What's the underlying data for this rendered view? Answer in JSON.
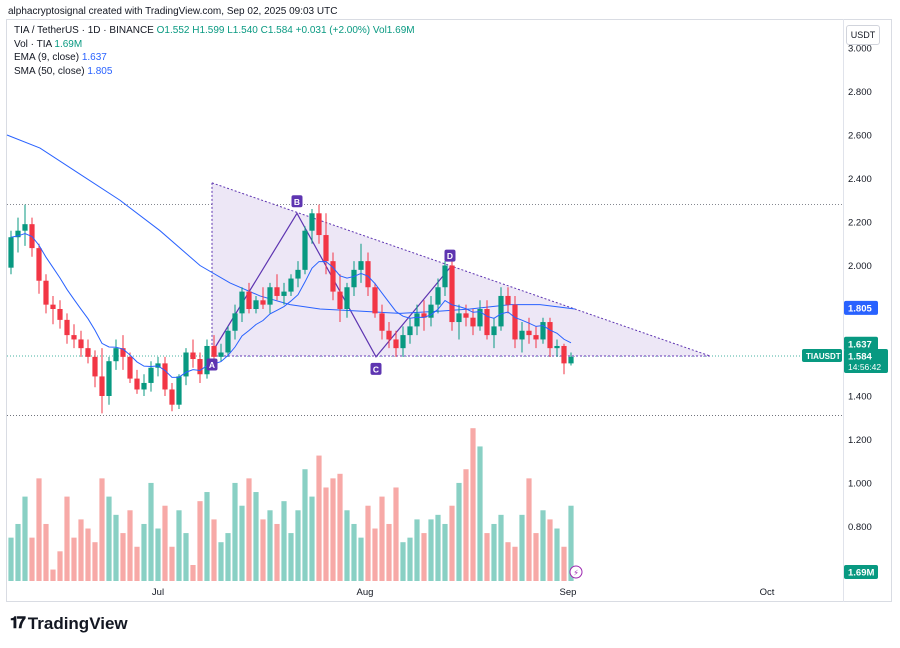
{
  "header": {
    "text": "alphacryptosignal created with TradingView.com, Sep 02, 2025 09:03 UTC"
  },
  "legend": {
    "symbol": "TIA / TetherUS · 1D · BINANCE",
    "ohlc": "O1.552  H1.599  L1.540  C1.584  +0.031 (+2.00%)  Vol1.69M",
    "vol_label": "Vol · TIA",
    "vol_value": "1.69M",
    "ema_label": "EMA (9, close)",
    "ema_value": "1.637",
    "sma_label": "SMA (50, close)",
    "sma_value": "1.805"
  },
  "currency_button": "USDT",
  "brand": {
    "name": "TradingView"
  },
  "colors": {
    "up": "#089981",
    "down": "#f23645",
    "ema": "#2962ff",
    "sma": "#2962ff",
    "pattern_fill": "#ede7f6",
    "pattern_marker": "#5e35b1"
  },
  "chart_data": {
    "type": "candlestick",
    "y_ticks": [
      "3.000",
      "2.800",
      "2.600",
      "2.400",
      "2.200",
      "2.000",
      "1.800",
      "1.600",
      "1.400",
      "1.200",
      "1.000",
      "0.800"
    ],
    "x_ticks": [
      "Jul",
      "Aug",
      "Sep",
      "Oct"
    ],
    "price_labels": [
      {
        "text": "1.805",
        "kind": "sma"
      },
      {
        "text": "1.637",
        "kind": "ema"
      },
      {
        "text": "1.584",
        "kind": "last",
        "ticker": "TIAUSDT",
        "countdown": "14:56:42"
      },
      {
        "text": "1.69M",
        "kind": "volume"
      }
    ],
    "pattern_points": [
      "A",
      "B",
      "C",
      "D"
    ],
    "candles": [
      [
        1.99,
        2.16,
        1.96,
        2.13
      ],
      [
        2.13,
        2.22,
        2.06,
        2.16
      ],
      [
        2.16,
        2.28,
        2.09,
        2.19
      ],
      [
        2.19,
        2.22,
        2.04,
        2.08
      ],
      [
        2.08,
        2.1,
        1.87,
        1.93
      ],
      [
        1.93,
        1.96,
        1.78,
        1.82
      ],
      [
        1.82,
        1.86,
        1.73,
        1.8
      ],
      [
        1.8,
        1.84,
        1.71,
        1.75
      ],
      [
        1.75,
        1.78,
        1.64,
        1.68
      ],
      [
        1.68,
        1.73,
        1.62,
        1.66
      ],
      [
        1.66,
        1.7,
        1.58,
        1.62
      ],
      [
        1.62,
        1.66,
        1.55,
        1.58
      ],
      [
        1.58,
        1.61,
        1.44,
        1.49
      ],
      [
        1.49,
        1.62,
        1.32,
        1.4
      ],
      [
        1.4,
        1.58,
        1.36,
        1.56
      ],
      [
        1.56,
        1.66,
        1.52,
        1.62
      ],
      [
        1.62,
        1.68,
        1.52,
        1.58
      ],
      [
        1.58,
        1.6,
        1.46,
        1.48
      ],
      [
        1.48,
        1.52,
        1.41,
        1.43
      ],
      [
        1.43,
        1.5,
        1.4,
        1.46
      ],
      [
        1.46,
        1.56,
        1.42,
        1.53
      ],
      [
        1.53,
        1.58,
        1.49,
        1.55
      ],
      [
        1.55,
        1.58,
        1.4,
        1.43
      ],
      [
        1.43,
        1.46,
        1.33,
        1.36
      ],
      [
        1.36,
        1.5,
        1.34,
        1.49
      ],
      [
        1.49,
        1.62,
        1.45,
        1.6
      ],
      [
        1.6,
        1.66,
        1.53,
        1.57
      ],
      [
        1.57,
        1.6,
        1.46,
        1.5
      ],
      [
        1.5,
        1.66,
        1.48,
        1.63
      ],
      [
        1.63,
        1.68,
        1.55,
        1.58
      ],
      [
        1.58,
        1.64,
        1.56,
        1.6
      ],
      [
        1.6,
        1.72,
        1.58,
        1.7
      ],
      [
        1.7,
        1.82,
        1.66,
        1.78
      ],
      [
        1.78,
        1.9,
        1.74,
        1.88
      ],
      [
        1.88,
        1.92,
        1.78,
        1.8
      ],
      [
        1.8,
        1.86,
        1.78,
        1.84
      ],
      [
        1.84,
        1.9,
        1.8,
        1.82
      ],
      [
        1.82,
        1.92,
        1.78,
        1.9
      ],
      [
        1.9,
        1.96,
        1.84,
        1.86
      ],
      [
        1.86,
        1.92,
        1.82,
        1.88
      ],
      [
        1.88,
        1.96,
        1.86,
        1.94
      ],
      [
        1.94,
        2.02,
        1.9,
        1.98
      ],
      [
        1.98,
        2.18,
        1.96,
        2.16
      ],
      [
        2.16,
        2.26,
        2.1,
        2.24
      ],
      [
        2.24,
        2.28,
        2.1,
        2.14
      ],
      [
        2.14,
        2.24,
        1.96,
        2.02
      ],
      [
        2.02,
        2.06,
        1.84,
        1.88
      ],
      [
        1.88,
        1.96,
        1.74,
        1.8
      ],
      [
        1.8,
        1.92,
        1.76,
        1.9
      ],
      [
        1.9,
        2.02,
        1.86,
        1.98
      ],
      [
        1.98,
        2.1,
        1.92,
        2.02
      ],
      [
        2.02,
        2.06,
        1.86,
        1.9
      ],
      [
        1.9,
        1.92,
        1.76,
        1.78
      ],
      [
        1.78,
        1.82,
        1.66,
        1.7
      ],
      [
        1.7,
        1.74,
        1.62,
        1.66
      ],
      [
        1.66,
        1.7,
        1.58,
        1.62
      ],
      [
        1.62,
        1.72,
        1.58,
        1.68
      ],
      [
        1.68,
        1.76,
        1.64,
        1.72
      ],
      [
        1.72,
        1.82,
        1.68,
        1.78
      ],
      [
        1.78,
        1.84,
        1.7,
        1.76
      ],
      [
        1.76,
        1.86,
        1.72,
        1.82
      ],
      [
        1.82,
        1.94,
        1.78,
        1.9
      ],
      [
        1.9,
        2.02,
        1.86,
        2.0
      ],
      [
        2.0,
        2.04,
        1.7,
        1.74
      ],
      [
        1.74,
        1.82,
        1.66,
        1.78
      ],
      [
        1.78,
        1.82,
        1.72,
        1.76
      ],
      [
        1.76,
        1.8,
        1.68,
        1.72
      ],
      [
        1.72,
        1.84,
        1.7,
        1.8
      ],
      [
        1.8,
        1.84,
        1.66,
        1.68
      ],
      [
        1.68,
        1.76,
        1.62,
        1.72
      ],
      [
        1.72,
        1.9,
        1.7,
        1.86
      ],
      [
        1.86,
        1.9,
        1.78,
        1.82
      ],
      [
        1.82,
        1.86,
        1.62,
        1.66
      ],
      [
        1.66,
        1.74,
        1.6,
        1.7
      ],
      [
        1.7,
        1.76,
        1.64,
        1.68
      ],
      [
        1.68,
        1.72,
        1.62,
        1.66
      ],
      [
        1.66,
        1.76,
        1.64,
        1.74
      ],
      [
        1.74,
        1.76,
        1.58,
        1.62
      ],
      [
        1.62,
        1.66,
        1.58,
        1.63
      ],
      [
        1.63,
        1.64,
        1.5,
        1.55
      ],
      [
        1.55,
        1.6,
        1.54,
        1.58
      ]
    ],
    "volumes": [
      0.72,
      0.78,
      0.9,
      0.72,
      0.98,
      0.78,
      0.58,
      0.66,
      0.9,
      0.72,
      0.8,
      0.76,
      0.7,
      0.98,
      0.9,
      0.82,
      0.74,
      0.84,
      0.68,
      0.78,
      0.96,
      0.76,
      0.86,
      0.68,
      0.84,
      0.74,
      0.6,
      0.88,
      0.92,
      0.8,
      0.7,
      0.74,
      0.96,
      0.86,
      0.98,
      0.92,
      0.8,
      0.84,
      0.78,
      0.88,
      0.74,
      0.84,
      1.02,
      0.9,
      1.08,
      0.94,
      0.98,
      1.0,
      0.84,
      0.78,
      0.72,
      0.86,
      0.76,
      0.9,
      0.78,
      0.94,
      0.7,
      0.72,
      0.8,
      0.74,
      0.8,
      0.82,
      0.78,
      0.86,
      0.96,
      1.02,
      1.2,
      1.12,
      0.74,
      0.78,
      0.82,
      0.7,
      0.68,
      0.82,
      0.98,
      0.74,
      0.84,
      0.8,
      0.76,
      0.68,
      0.86
    ]
  }
}
